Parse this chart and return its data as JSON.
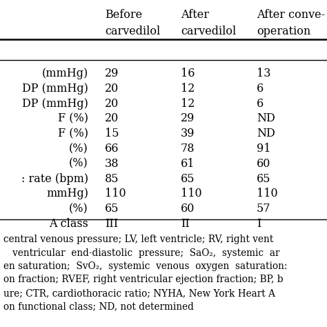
{
  "col_headers": [
    [
      "Before",
      "carvedilol"
    ],
    [
      "After",
      "carvedilol"
    ],
    [
      "After conve-",
      "operation"
    ]
  ],
  "row_labels": [
    "(mmHg)",
    "DP (mmHg)",
    "DP (mmHg)",
    "F (%)",
    "F (%)",
    "(%)",
    "(%)",
    ": rate (bpm)",
    "mmHg)",
    "(%)",
    "A class"
  ],
  "data": [
    [
      "29",
      "16",
      "13"
    ],
    [
      "20",
      "12",
      "6"
    ],
    [
      "20",
      "12",
      "6"
    ],
    [
      "20",
      "29",
      "ND"
    ],
    [
      "15",
      "39",
      "ND"
    ],
    [
      "66",
      "78",
      "91"
    ],
    [
      "38",
      "61",
      "60"
    ],
    [
      "85",
      "65",
      "65"
    ],
    [
      "110",
      "110",
      "110"
    ],
    [
      "65",
      "60",
      "57"
    ],
    [
      "III",
      "II",
      "I"
    ]
  ],
  "footnote_lines": [
    "central venous pressure; LV, left ventricle; RV, right vent",
    "   ventricular  end-diastolic  pressure;  SaO₂,  systemic  ar",
    "en saturation;  SvO₂,  systemic  venous  oxygen  saturation:",
    "on fraction; RVEF, right ventricular ejection fraction; BP, b",
    "ure; CTR, cardiothoracic ratio; NYHA, New York Heart A",
    "on functional class; ND, not determined"
  ],
  "bg_color": "#ffffff",
  "text_color": "#000000",
  "header_fontsize": 11.5,
  "data_fontsize": 11.5,
  "footnote_fontsize": 9.8
}
